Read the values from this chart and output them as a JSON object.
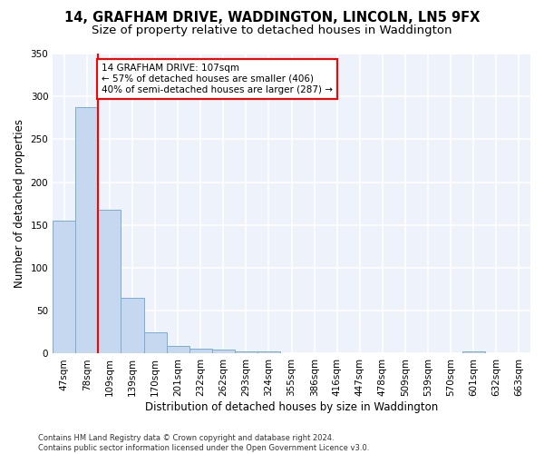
{
  "title1": "14, GRAFHAM DRIVE, WADDINGTON, LINCOLN, LN5 9FX",
  "title2": "Size of property relative to detached houses in Waddington",
  "xlabel": "Distribution of detached houses by size in Waddington",
  "ylabel": "Number of detached properties",
  "bar_labels": [
    "47sqm",
    "78sqm",
    "109sqm",
    "139sqm",
    "170sqm",
    "201sqm",
    "232sqm",
    "262sqm",
    "293sqm",
    "324sqm",
    "355sqm",
    "386sqm",
    "416sqm",
    "447sqm",
    "478sqm",
    "509sqm",
    "539sqm",
    "570sqm",
    "601sqm",
    "632sqm",
    "663sqm"
  ],
  "bar_values": [
    155,
    287,
    168,
    65,
    25,
    9,
    6,
    5,
    3,
    3,
    0,
    0,
    0,
    0,
    0,
    0,
    0,
    0,
    3,
    0,
    0
  ],
  "bar_color": "#c5d8f0",
  "bar_edge_color": "#7aadd4",
  "annotation_text": "14 GRAFHAM DRIVE: 107sqm\n← 57% of detached houses are smaller (406)\n40% of semi-detached houses are larger (287) →",
  "annotation_box_color": "white",
  "annotation_box_edge_color": "red",
  "vline_color": "red",
  "ylim": [
    0,
    350
  ],
  "yticks": [
    0,
    50,
    100,
    150,
    200,
    250,
    300,
    350
  ],
  "background_color": "#eef2fb",
  "grid_color": "white",
  "footer": "Contains HM Land Registry data © Crown copyright and database right 2024.\nContains public sector information licensed under the Open Government Licence v3.0.",
  "title_fontsize": 10.5,
  "subtitle_fontsize": 9.5,
  "ylabel_fontsize": 8.5,
  "xlabel_fontsize": 8.5,
  "tick_fontsize": 7.5,
  "footer_fontsize": 6.0
}
